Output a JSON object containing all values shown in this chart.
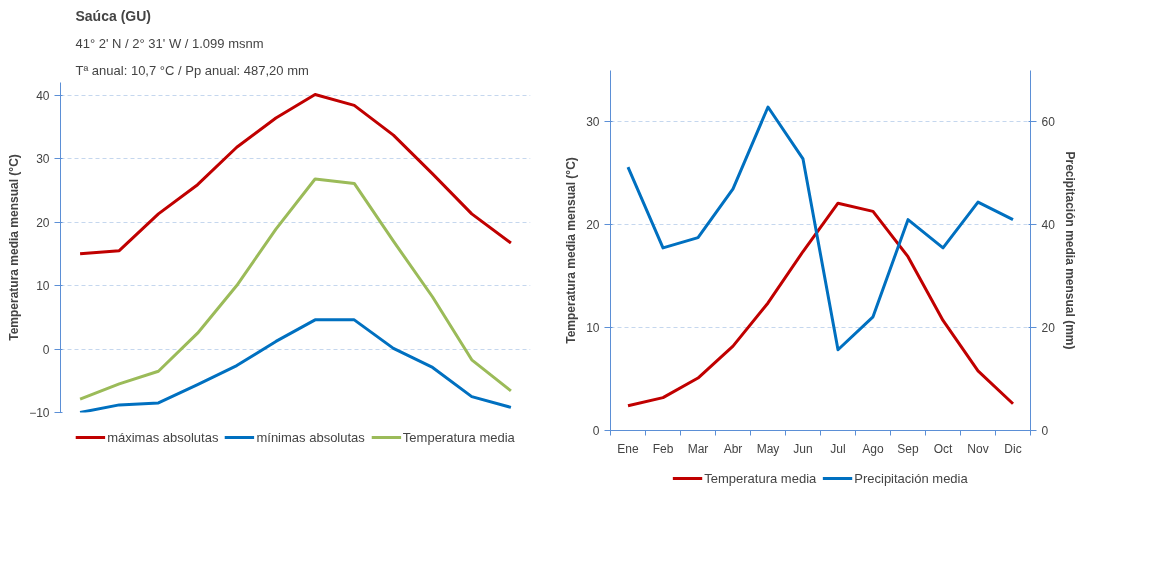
{
  "chart_data": [
    {
      "type": "line",
      "title": "Saúca (GU)",
      "subtitle": "41° 2' N / 2° 31' W / 1.099 msnm",
      "annotations": [
        "Tª anual: 10,7 °C / Pp anual: 487,20 mm"
      ],
      "ylabel": "Temperatura media mensual (°C)",
      "categories": [
        null,
        null,
        null,
        null,
        null,
        null,
        null,
        null,
        null,
        null,
        null,
        null
      ],
      "ylim": [
        -10,
        42
      ],
      "yticks": [
        -10,
        0,
        10,
        20,
        30,
        40
      ],
      "grid": "y",
      "legend": "bottom",
      "tick_labels": "y",
      "series": [
        {
          "name": "máximas absolutas",
          "color": "#c00000",
          "values": [
            15.0,
            15.5,
            21.3,
            25.9,
            31.8,
            36.4,
            40.1,
            38.4,
            33.7,
            27.6,
            21.3,
            16.7
          ]
        },
        {
          "name": "mínimas absolutas",
          "color": "#0070c0",
          "values": [
            -10.0,
            -8.8,
            -8.5,
            -5.6,
            -2.6,
            1.2,
            4.6,
            4.6,
            0.1,
            -2.9,
            -7.5,
            -9.2
          ]
        },
        {
          "name": "Temperatura media",
          "color": "#9bbb59",
          "values": [
            -7.9,
            -5.5,
            -3.5,
            2.5,
            10.0,
            18.9,
            26.8,
            26.1,
            17.0,
            8.2,
            -1.7,
            -6.6
          ]
        }
      ]
    },
    {
      "type": "line",
      "ylabel": "Temperatura media mensual (°C)",
      "y2label": "Precipitación media mensual (mm)",
      "categories": [
        "Ene",
        "Feb",
        "Mar",
        "Abr",
        "May",
        "Jun",
        "Jul",
        "Ago",
        "Sep",
        "Oct",
        "Nov",
        "Dic"
      ],
      "ylim": [
        0,
        35
      ],
      "yticks": [
        0,
        10,
        20,
        30
      ],
      "y2lim": [
        0,
        70
      ],
      "y2ticks": [
        0,
        20,
        40,
        60
      ],
      "grid": "y",
      "legend": "bottom",
      "series": [
        {
          "name": "Temperatura media",
          "color": "#c00000",
          "values": [
            2.4,
            3.2,
            5.1,
            8.2,
            12.4,
            17.4,
            22.1,
            21.3,
            16.9,
            10.7,
            5.8,
            2.6
          ]
        },
        {
          "name": "Precipitación media",
          "color": "#0070c0",
          "axis": "y2",
          "values": [
            51.2,
            35.5,
            37.5,
            47.0,
            62.9,
            52.8,
            15.7,
            22.1,
            41.0,
            35.5,
            44.4,
            41.0
          ]
        }
      ]
    }
  ]
}
